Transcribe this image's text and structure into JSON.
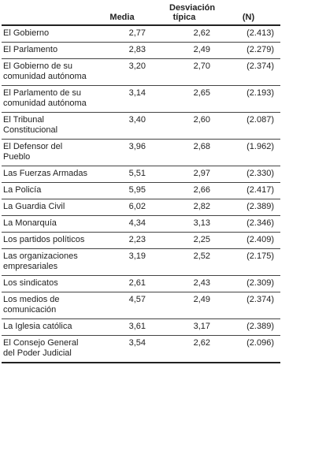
{
  "table": {
    "header": [
      "Media",
      "Desviación típica",
      "(N)"
    ],
    "rows": [
      [
        "El Gobierno",
        "2,77",
        "2,62",
        "(2.413)"
      ],
      [
        "El Parlamento",
        "2,83",
        "2,49",
        "(2.279)"
      ],
      [
        "El Gobierno de su comunidad autónoma",
        "3,20",
        "2,70",
        "(2.374)"
      ],
      [
        "El Parlamento de su comunidad autónoma",
        "3,14",
        "2,65",
        "(2.193)"
      ],
      [
        "El Tribunal Constitucional",
        "3,40",
        "2,60",
        "(2.087)"
      ],
      [
        "El Defensor del Pueblo",
        "3,96",
        "2,68",
        "(1.962)"
      ],
      [
        "Las Fuerzas Armadas",
        "5,51",
        "2,97",
        "(2.330)"
      ],
      [
        "La Policía",
        "5,95",
        "2,66",
        "(2.417)"
      ],
      [
        "La Guardia Civil",
        "6,02",
        "2,82",
        "(2.389)"
      ],
      [
        "La Monarquía",
        "4,34",
        "3,13",
        "(2.346)"
      ],
      [
        "Los partidos políticos",
        "2,23",
        "2,25",
        "(2.409)"
      ],
      [
        "Las organizaciones empresariales",
        "3,19",
        "2,52",
        "(2.175)"
      ],
      [
        "Los sindicatos",
        "2,61",
        "2,43",
        "(2.309)"
      ],
      [
        "Los medios de comunicación",
        "4,57",
        "2,49",
        "(2.374)"
      ],
      [
        "La Iglesia católica",
        "3,61",
        "3,17",
        "(2.389)"
      ],
      [
        "El Consejo General del Poder Judicial",
        "3,54",
        "2,62",
        "(2.096)"
      ]
    ]
  }
}
